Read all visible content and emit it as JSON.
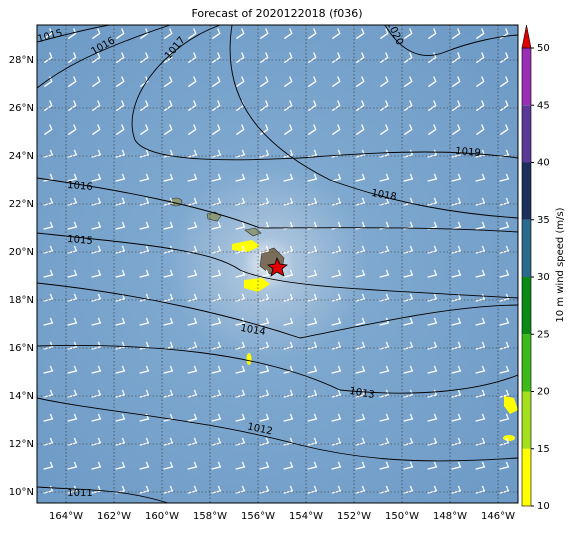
{
  "title": "Forecast of 2020122018 (f036)",
  "lon_labels": [
    "164°W",
    "162°W",
    "160°W",
    "158°W",
    "156°W",
    "154°W",
    "152°W",
    "150°W",
    "148°W",
    "146°W"
  ],
  "lat_labels": [
    "28°N",
    "26°N",
    "24°N",
    "22°N",
    "20°N",
    "18°N",
    "16°N",
    "14°N",
    "12°N",
    "10°N"
  ],
  "isobar_labels": [
    "1015",
    "1016",
    "1017",
    "1020",
    "1019",
    "1016",
    "1018",
    "1015",
    "1014",
    "1013",
    "1012",
    "1011"
  ],
  "colorbar": {
    "label": "10 m wind speed (m/s)",
    "lim": [
      10,
      50
    ],
    "ticks": [
      10,
      15,
      20,
      25,
      30,
      35,
      40,
      45,
      50
    ]
  }
}
